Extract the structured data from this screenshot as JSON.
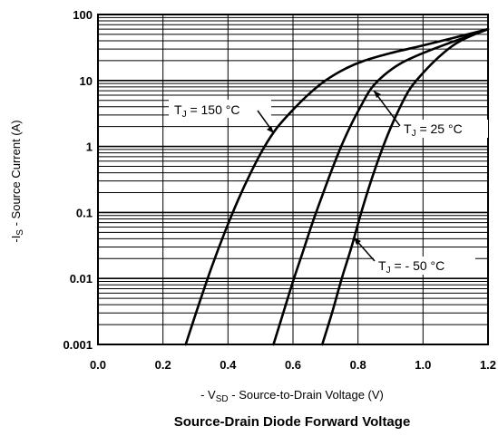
{
  "chart_data": {
    "type": "line",
    "title": "",
    "caption": "Source-Drain Diode Forward Voltage",
    "xlabel": {
      "prefix": "- V",
      "sub": "SD",
      "suffix": " - Source-to-Drain Voltage (V)"
    },
    "ylabel": {
      "prefix": "-I",
      "sub": "S",
      "suffix": " - Source Current (A)"
    },
    "xlim": [
      0.0,
      1.2
    ],
    "ylim": [
      0.001,
      100
    ],
    "yscale": "log",
    "grid": true,
    "x_ticks": [
      "0.0",
      "0.2",
      "0.4",
      "0.6",
      "0.8",
      "1.0",
      "1.2"
    ],
    "y_ticks": [
      "0.001",
      "0.01",
      "0.1",
      "1",
      "10",
      "100"
    ],
    "series": [
      {
        "name": "TJ = 150 °C",
        "label": {
          "prefix": "T",
          "sub": "J",
          "suffix": " = 150 °C"
        },
        "x": [
          0.27,
          0.31,
          0.35,
          0.39,
          0.43,
          0.47,
          0.51,
          0.55,
          0.6,
          0.65,
          0.7,
          0.76,
          0.82,
          0.9,
          1.0,
          1.1,
          1.2
        ],
        "y": [
          0.001,
          0.004,
          0.015,
          0.05,
          0.15,
          0.4,
          0.95,
          1.9,
          3.6,
          6.3,
          10,
          15,
          20,
          26,
          34,
          45,
          60
        ]
      },
      {
        "name": "TJ = 25 °C",
        "label": {
          "prefix": "T",
          "sub": "J",
          "suffix": " = 25 °C"
        },
        "x": [
          0.54,
          0.57,
          0.6,
          0.63,
          0.66,
          0.69,
          0.72,
          0.75,
          0.78,
          0.81,
          0.84,
          0.88,
          0.93,
          1.0,
          1.1,
          1.2
        ],
        "y": [
          0.001,
          0.003,
          0.009,
          0.025,
          0.07,
          0.18,
          0.45,
          1.05,
          2.2,
          4.2,
          7.5,
          12,
          18,
          26,
          40,
          60
        ]
      },
      {
        "name": "TJ = -50 °C",
        "label": {
          "prefix": "T",
          "sub": "J",
          "suffix": " = - 50 °C"
        },
        "x": [
          0.69,
          0.72,
          0.75,
          0.78,
          0.81,
          0.84,
          0.87,
          0.9,
          0.93,
          0.96,
          1.0,
          1.05,
          1.1,
          1.15,
          1.2
        ],
        "y": [
          0.001,
          0.003,
          0.01,
          0.03,
          0.1,
          0.3,
          0.8,
          1.9,
          4.0,
          7.5,
          13,
          23,
          36,
          48,
          60
        ]
      }
    ]
  }
}
